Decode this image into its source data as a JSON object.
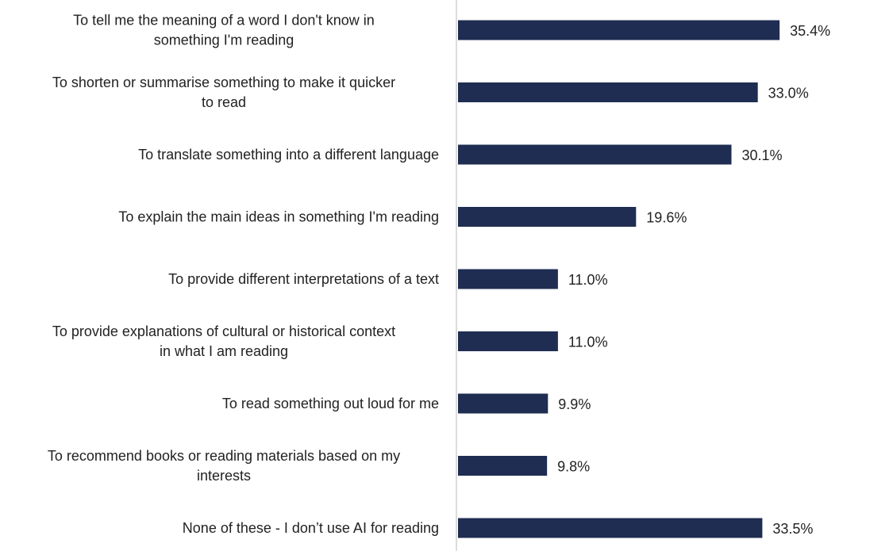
{
  "chart_data": {
    "type": "bar",
    "orientation": "horizontal",
    "categories": [
      "To tell me the meaning of a word I don't know in something I'm reading",
      "To shorten or summarise something to make it quicker to read",
      "To translate something into a different language",
      "To explain the main ideas in something I'm reading",
      "To provide different interpretations of a text",
      "To provide explanations of cultural or historical context in what I am reading",
      "To read something out loud for me",
      "To recommend books or reading materials based on my interests",
      "None of these - I don’t use AI for reading"
    ],
    "category_lines": [
      [
        "To tell me the meaning of a word I don't know in",
        "something I'm reading"
      ],
      [
        "To shorten or summarise something to make it quicker",
        "to read"
      ],
      [
        "To translate something into a different language"
      ],
      [
        "To explain the main ideas in something I'm reading"
      ],
      [
        "To provide different interpretations of a text"
      ],
      [
        "To provide explanations of cultural or historical context",
        "in what I am reading"
      ],
      [
        "To read something out loud for me"
      ],
      [
        "To recommend books or reading materials based on my",
        "interests"
      ],
      [
        "None of these - I don’t use AI for reading"
      ]
    ],
    "values": [
      35.4,
      33.0,
      30.1,
      19.6,
      11.0,
      11.0,
      9.9,
      9.8,
      33.5
    ],
    "value_labels": [
      "35.4%",
      "33.0%",
      "30.1%",
      "19.6%",
      "11.0%",
      "11.0%",
      "9.9%",
      "9.8%",
      "33.5%"
    ],
    "unit": "%",
    "xlim": [
      0,
      45
    ],
    "grid": false,
    "legend": "none",
    "title": "",
    "xlabel": "",
    "ylabel": "",
    "colors": {
      "bar": "#1f2d52",
      "axis": "#d0d0d0",
      "text": "#222222"
    }
  }
}
